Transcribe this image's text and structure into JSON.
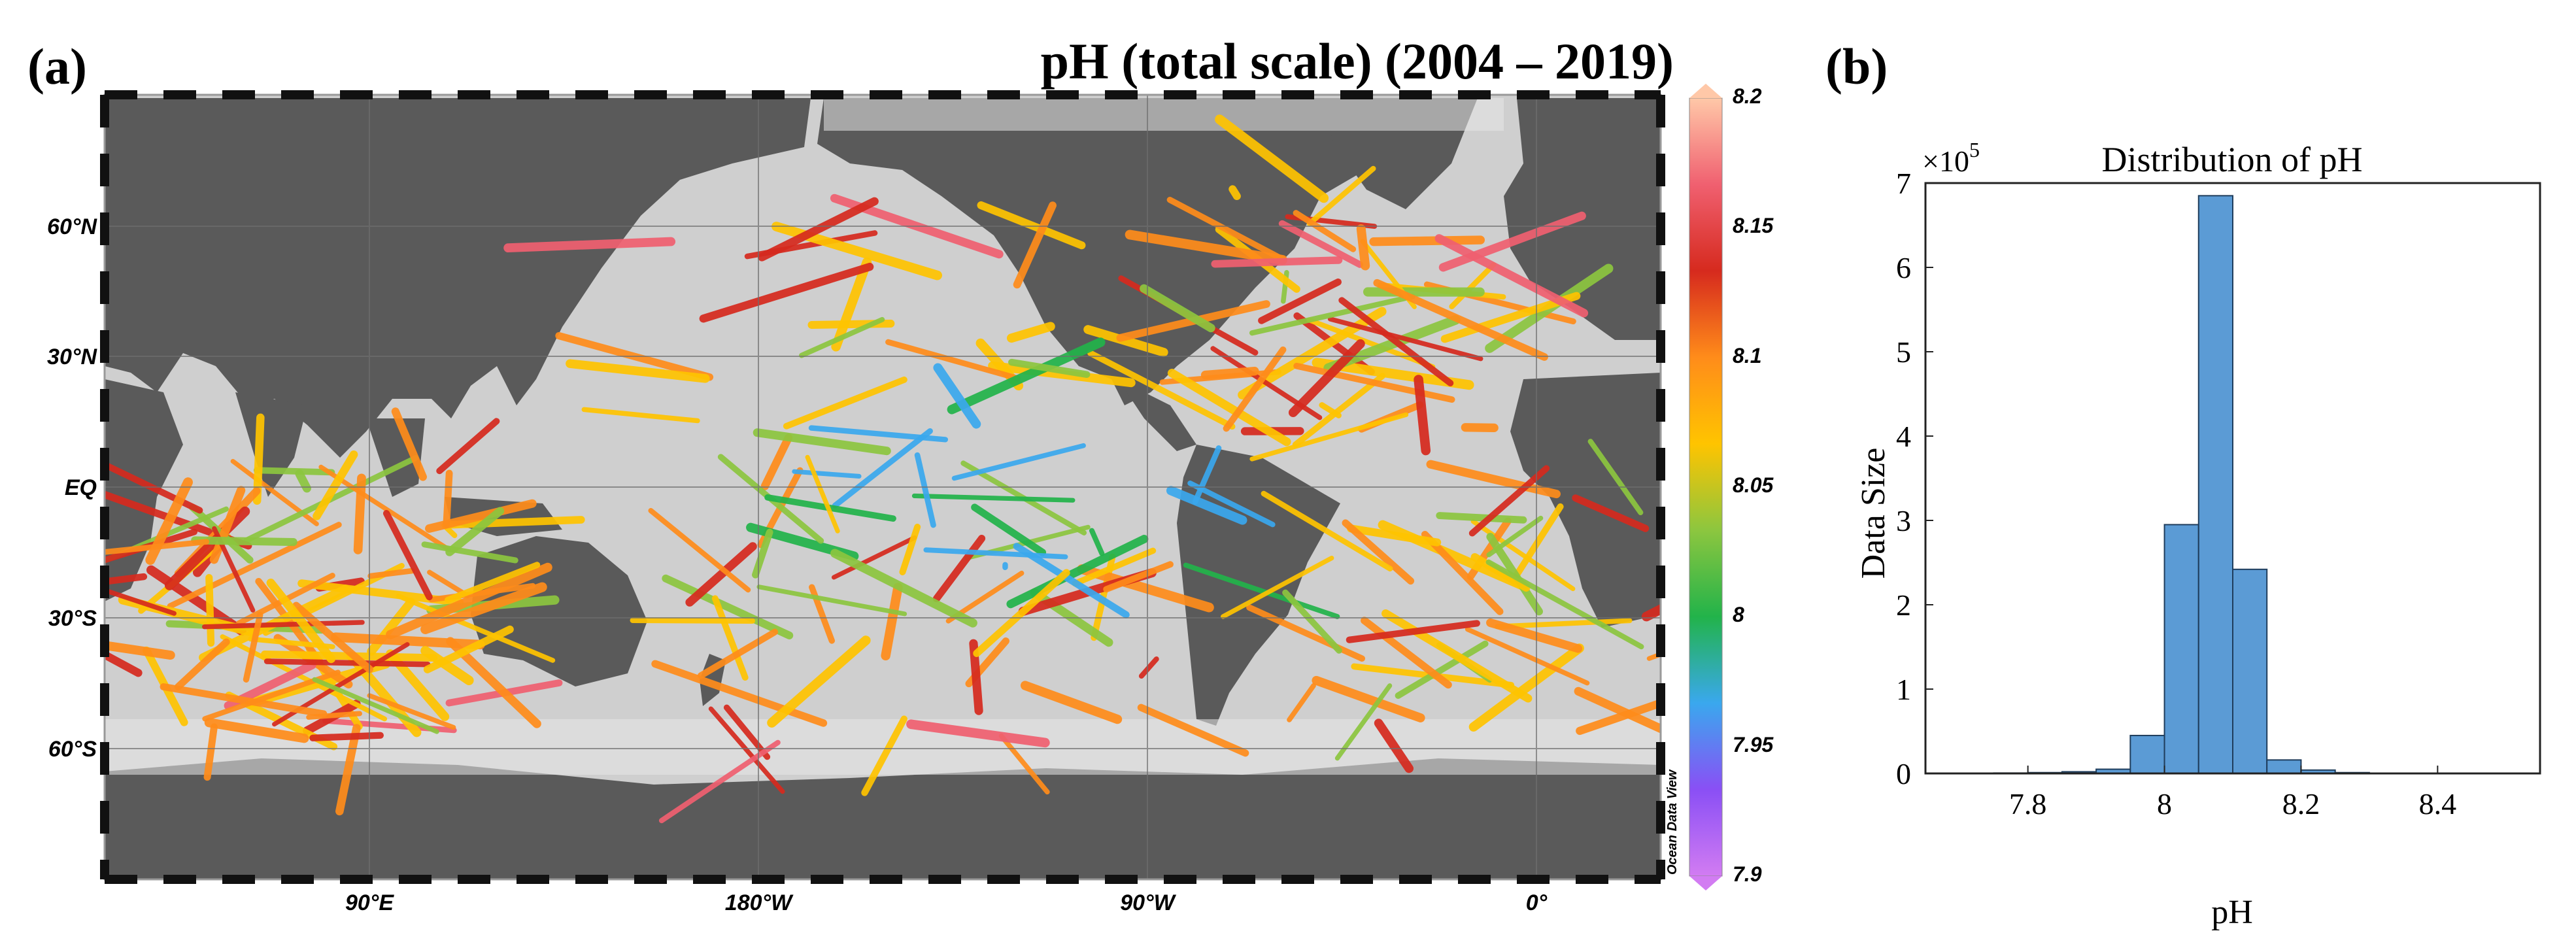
{
  "panel_a": {
    "label": "(a)",
    "title": "pH (total scale) (2004 – 2019)",
    "lat_labels": [
      "60°N",
      "30°N",
      "EQ",
      "30°S",
      "60°S"
    ],
    "lon_labels": [
      "90°E",
      "180°W",
      "90°W",
      "0°"
    ],
    "watermark": "Ocean Data View",
    "colorbar": {
      "ticks": [
        "8.2",
        "8.15",
        "8.1",
        "8.05",
        "8",
        "7.95",
        "7.9"
      ],
      "min": 7.9,
      "max": 8.2,
      "colors": [
        "#d27cf2",
        "#8a4ff5",
        "#3aa8ee",
        "#22b34a",
        "#8cc63f",
        "#ffc400",
        "#ff8c1a",
        "#d62a1e",
        "#f06070",
        "#ffc8a8"
      ]
    },
    "colors": {
      "land": "#5a5a5a",
      "ocean": "#d6d6d6"
    }
  },
  "panel_b": {
    "label": "(b)",
    "chart_data": {
      "type": "bar",
      "title": "Distribution of pH",
      "xlabel": "pH",
      "ylabel": "Data Size",
      "y_multiplier": "×10",
      "y_exponent": "5",
      "xlim": [
        7.65,
        8.55
      ],
      "ylim": [
        0,
        7
      ],
      "xticks": [
        "7.8",
        "8",
        "8.2",
        "8.4"
      ],
      "yticks": [
        "0",
        "1",
        "2",
        "3",
        "4",
        "5",
        "6",
        "7"
      ],
      "bin_width": 0.05,
      "bin_centers": [
        7.775,
        7.825,
        7.875,
        7.925,
        7.975,
        8.025,
        8.075,
        8.125,
        8.175,
        8.225,
        8.275
      ],
      "values": [
        0.005,
        0.01,
        0.02,
        0.05,
        0.45,
        2.95,
        6.85,
        2.42,
        0.16,
        0.04,
        0.01
      ],
      "bar_color": "#5b9bd5"
    }
  }
}
